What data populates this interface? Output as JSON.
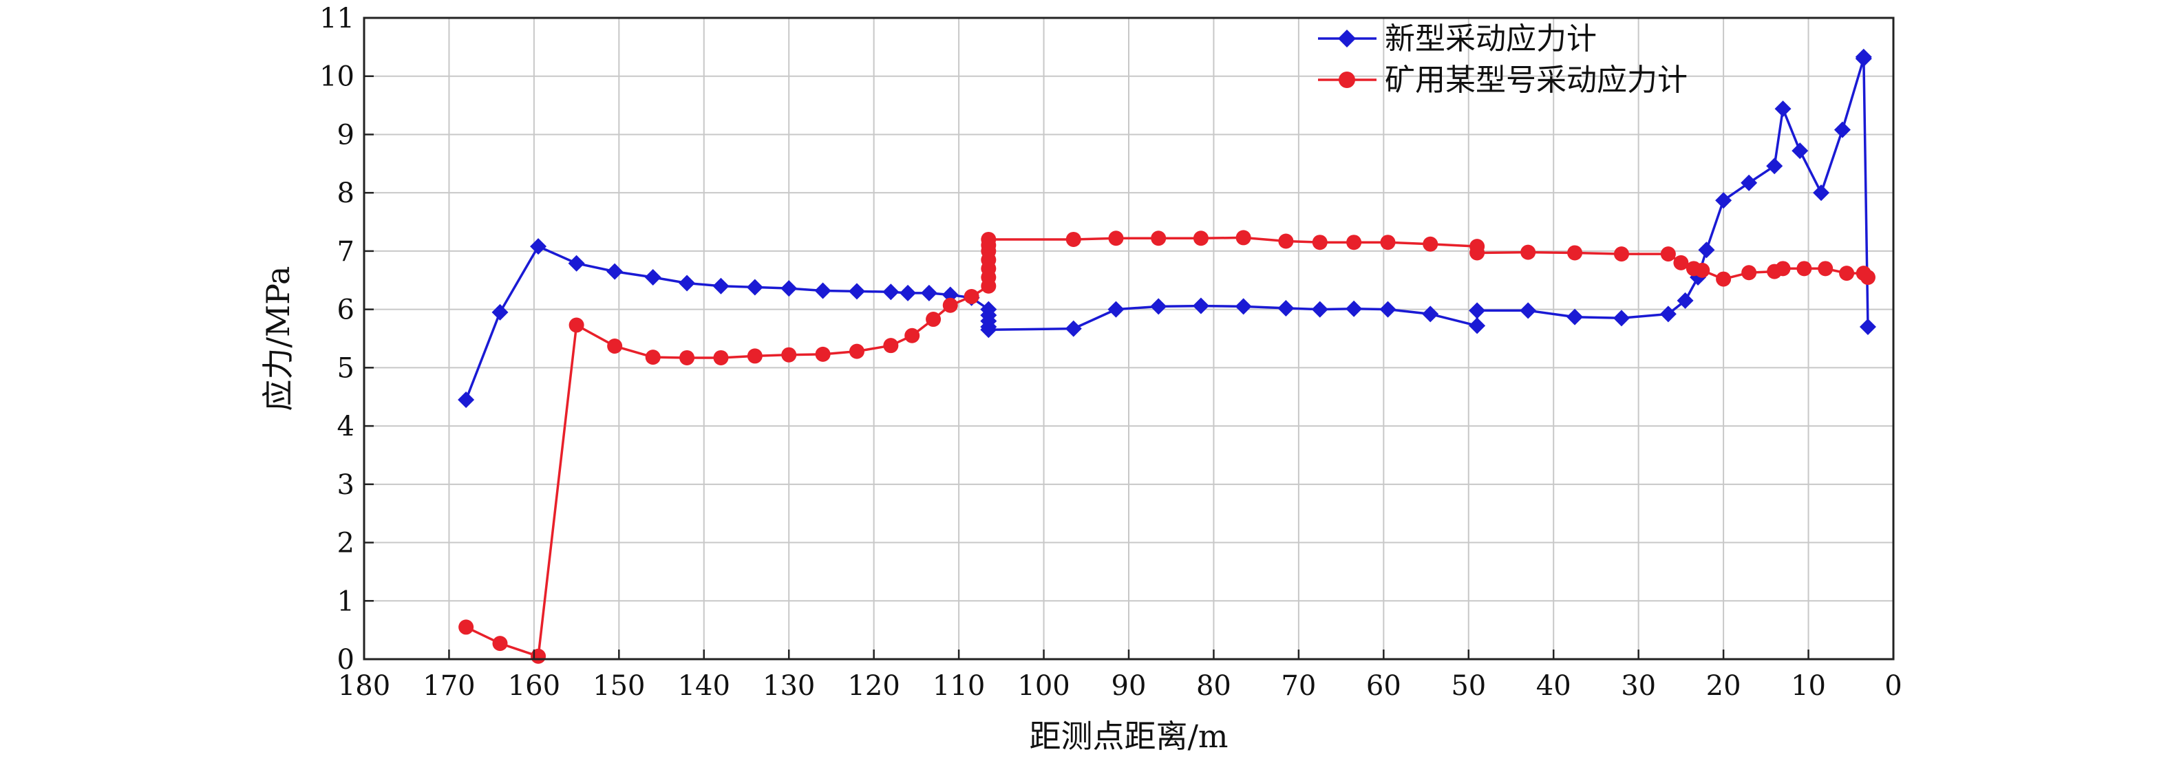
{
  "chart_data": {
    "type": "line",
    "title": "",
    "xlabel": "距测点距离/m",
    "ylabel": "应力/MPa",
    "xlim": [
      180,
      0
    ],
    "ylim": [
      0,
      11
    ],
    "x_reversed": true,
    "xticks": [
      180,
      170,
      160,
      150,
      140,
      130,
      120,
      110,
      100,
      90,
      80,
      70,
      60,
      50,
      40,
      30,
      20,
      10,
      0
    ],
    "yticks": [
      0,
      1,
      2,
      3,
      4,
      5,
      6,
      7,
      8,
      9,
      10,
      11
    ],
    "grid": true,
    "legend_position": "top-right",
    "series": [
      {
        "name": "新型采动应力计",
        "color": "#1a1ad4",
        "marker": "diamond",
        "x": [
          168,
          164,
          159.5,
          155,
          150.5,
          146,
          142,
          138,
          134,
          130,
          126,
          122,
          118,
          116,
          113.5,
          111,
          108.5,
          106.5,
          106.5,
          106.5,
          106.5,
          106.5,
          96.5,
          91.5,
          86.5,
          81.5,
          76.5,
          71.5,
          67.5,
          63.5,
          59.5,
          54.5,
          49,
          49,
          43,
          37.5,
          32,
          26.5,
          24.5,
          23,
          22,
          20,
          17,
          14,
          13,
          11,
          8.5,
          6,
          3.5,
          3.5,
          3
        ],
        "y": [
          4.45,
          5.95,
          7.08,
          6.79,
          6.65,
          6.55,
          6.45,
          6.4,
          6.38,
          6.36,
          6.32,
          6.31,
          6.3,
          6.28,
          6.28,
          6.25,
          6.2,
          6.0,
          5.9,
          5.8,
          5.7,
          5.65,
          5.67,
          6.0,
          6.05,
          6.06,
          6.05,
          6.02,
          6.0,
          6.01,
          6.0,
          5.92,
          5.72,
          5.98,
          5.98,
          5.87,
          5.85,
          5.92,
          6.15,
          6.55,
          7.02,
          7.87,
          8.17,
          8.46,
          9.44,
          8.72,
          8.0,
          9.08,
          10.3,
          10.33,
          5.7
        ]
      },
      {
        "name": "矿用某型号采动应力计",
        "color": "#e8202a",
        "marker": "circle",
        "x": [
          168,
          164,
          159.5,
          155,
          150.5,
          146,
          142,
          138,
          134,
          130,
          126,
          122,
          118,
          115.5,
          113,
          111,
          108.5,
          106.5,
          106.5,
          106.5,
          106.5,
          106.5,
          106.5,
          106.5,
          96.5,
          91.5,
          86.5,
          81.5,
          76.5,
          71.5,
          67.5,
          63.5,
          59.5,
          54.5,
          49,
          49,
          43,
          37.5,
          32,
          26.5,
          25,
          23.5,
          22.5,
          20,
          17,
          14,
          13,
          10.5,
          8,
          5.5,
          3.5,
          3
        ],
        "y": [
          0.55,
          0.27,
          0.05,
          5.73,
          5.37,
          5.18,
          5.17,
          5.17,
          5.2,
          5.22,
          5.23,
          5.28,
          5.38,
          5.55,
          5.83,
          6.07,
          6.22,
          6.4,
          6.55,
          6.7,
          6.85,
          7.0,
          7.1,
          7.2,
          7.2,
          7.22,
          7.22,
          7.22,
          7.23,
          7.17,
          7.15,
          7.15,
          7.15,
          7.12,
          7.08,
          6.97,
          6.98,
          6.97,
          6.95,
          6.95,
          6.8,
          6.7,
          6.67,
          6.52,
          6.63,
          6.65,
          6.7,
          6.7,
          6.7,
          6.62,
          6.62,
          6.55
        ]
      }
    ]
  }
}
